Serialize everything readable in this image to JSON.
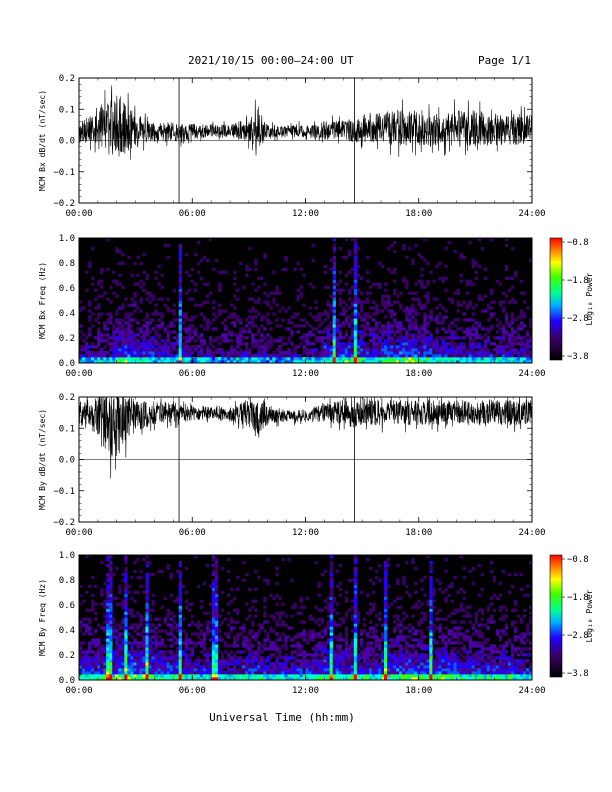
{
  "header": {
    "title": "2021/10/15  00:00–24:00 UT",
    "page": "Page 1/1"
  },
  "chart_data": [
    {
      "type": "line",
      "id": "bx-dbdt",
      "ylabel": "MCM Bx dB/dt (nT/sec)",
      "xlabel": "",
      "xlim": [
        0,
        24
      ],
      "ylim": [
        -0.2,
        0.2
      ],
      "xticks": [
        "00:00",
        "06:00",
        "12:00",
        "18:00",
        "24:00"
      ],
      "yticks": [
        "0.2",
        "0.1",
        "0.0",
        "−0.1",
        "−0.2"
      ],
      "series": [
        {
          "x": [
            0,
            1,
            1.5,
            2,
            2.5,
            3,
            4,
            5,
            5.3,
            6,
            7,
            8,
            9,
            9.5,
            10,
            11,
            12,
            13,
            14,
            14.6,
            15,
            16,
            17,
            18,
            19,
            20,
            21,
            22,
            23,
            24
          ],
          "y": [
            0.03,
            0.035,
            0.06,
            0.05,
            0.04,
            0.035,
            0.03,
            0.03,
            0.02,
            0.03,
            0.03,
            0.03,
            0.035,
            0.04,
            0.03,
            0.03,
            0.03,
            0.032,
            0.035,
            0.03,
            0.035,
            0.04,
            0.04,
            0.04,
            0.035,
            0.04,
            0.04,
            0.035,
            0.035,
            0.035
          ],
          "amplitude": [
            0.04,
            0.05,
            0.1,
            0.12,
            0.08,
            0.05,
            0.03,
            0.03,
            0.03,
            0.025,
            0.02,
            0.02,
            0.04,
            0.07,
            0.02,
            0.02,
            0.02,
            0.03,
            0.03,
            0.04,
            0.04,
            0.05,
            0.06,
            0.06,
            0.05,
            0.06,
            0.06,
            0.05,
            0.05,
            0.05
          ]
        }
      ],
      "spikes_x": [
        5.3,
        14.6
      ]
    },
    {
      "type": "heatmap",
      "id": "bx-freq",
      "ylabel": "MCM Bx Freq (Hz)",
      "xlim": [
        0,
        24
      ],
      "ylim": [
        0,
        1
      ],
      "xticks": [
        "00:00",
        "06:00",
        "12:00",
        "18:00",
        "24:00"
      ],
      "yticks": [
        "1.0",
        "0.8",
        "0.6",
        "0.4",
        "0.2",
        "0.0"
      ],
      "colorbar_label": "Log₁₀ Power",
      "colorbar_ticks": [
        "−0.8",
        "−1.8",
        "−2.8",
        "−3.8"
      ],
      "colorbar_range": [
        -3.8,
        -0.8
      ],
      "activity": [
        0.35,
        0.4,
        0.55,
        0.5,
        0.4,
        0.4,
        0.3,
        0.3,
        0.35,
        0.35,
        0.3,
        0.3,
        0.35,
        0.5,
        0.55,
        0.45,
        0.55,
        0.6,
        0.5,
        0.45,
        0.4,
        0.4,
        0.4,
        0.35
      ],
      "bright_lines_x": [
        5.3,
        13.5,
        14.6
      ]
    },
    {
      "type": "line",
      "id": "by-dbdt",
      "ylabel": "MCM By dB/dt (nT/sec)",
      "xlabel": "",
      "xlim": [
        0,
        24
      ],
      "ylim": [
        -0.2,
        0.2
      ],
      "xticks": [
        "00:00",
        "06:00",
        "12:00",
        "18:00",
        "24:00"
      ],
      "yticks": [
        "0.2",
        "0.1",
        "0.0",
        "−0.1",
        "−0.2"
      ],
      "series": [
        {
          "x": [
            0,
            1,
            1.5,
            2,
            2.5,
            3,
            4,
            5,
            5.3,
            6,
            7,
            8,
            9,
            9.5,
            10,
            11,
            12,
            13,
            14,
            14.6,
            15,
            16,
            17,
            18,
            19,
            20,
            21,
            22,
            23,
            24
          ],
          "y": [
            0.15,
            0.14,
            0.1,
            0.11,
            0.13,
            0.14,
            0.15,
            0.15,
            0.14,
            0.15,
            0.15,
            0.14,
            0.15,
            0.14,
            0.14,
            0.14,
            0.14,
            0.15,
            0.15,
            0.14,
            0.15,
            0.15,
            0.15,
            0.15,
            0.15,
            0.15,
            0.15,
            0.15,
            0.15,
            0.15
          ],
          "amplitude": [
            0.04,
            0.06,
            0.1,
            0.11,
            0.08,
            0.05,
            0.04,
            0.03,
            0.03,
            0.025,
            0.02,
            0.02,
            0.05,
            0.06,
            0.025,
            0.02,
            0.02,
            0.03,
            0.04,
            0.04,
            0.04,
            0.04,
            0.04,
            0.04,
            0.04,
            0.04,
            0.04,
            0.04,
            0.04,
            0.04
          ]
        }
      ],
      "spikes_x": [
        5.3,
        14.6
      ]
    },
    {
      "type": "heatmap",
      "id": "by-freq",
      "ylabel": "MCM By Freq (Hz)",
      "xlim": [
        0,
        24
      ],
      "ylim": [
        0,
        1
      ],
      "xticks": [
        "00:00",
        "06:00",
        "12:00",
        "18:00",
        "24:00"
      ],
      "yticks": [
        "1.0",
        "0.8",
        "0.6",
        "0.4",
        "0.2",
        "0.0"
      ],
      "colorbar_label": "Log₁₀ Power",
      "colorbar_ticks": [
        "−0.8",
        "−1.8",
        "−2.8",
        "−3.8"
      ],
      "colorbar_range": [
        -3.8,
        -0.8
      ],
      "activity": [
        0.5,
        0.55,
        0.65,
        0.6,
        0.55,
        0.5,
        0.45,
        0.4,
        0.45,
        0.5,
        0.45,
        0.45,
        0.5,
        0.55,
        0.5,
        0.5,
        0.55,
        0.6,
        0.55,
        0.55,
        0.5,
        0.5,
        0.5,
        0.45
      ],
      "bright_lines_x": [
        1.6,
        2.5,
        3.6,
        5.3,
        7.2,
        13.4,
        14.6,
        16.3,
        18.7
      ]
    }
  ],
  "footer": {
    "xlabel": "Universal Time (hh:mm)"
  }
}
